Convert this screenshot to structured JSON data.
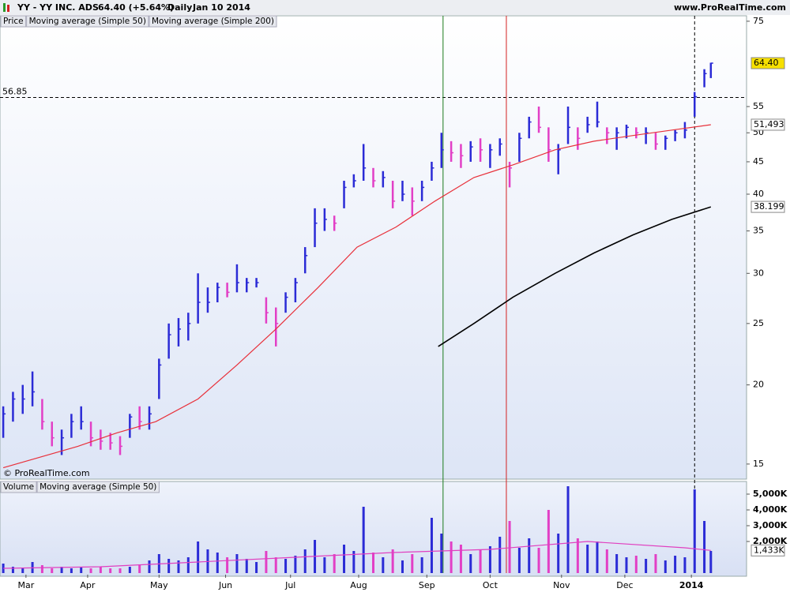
{
  "chart_data": [
    {
      "type": "ohlc",
      "title": "YY - YY INC. ADS",
      "subtitle": "64.40 (+5.64%)",
      "period": "Daily",
      "date": "Jan 10 2014",
      "source": "www.ProRealTime.com",
      "copyright": "© ProRealTime.com",
      "log_scale": true,
      "xlim": [
        -1,
        229
      ],
      "ylim": [
        14.2,
        76.5
      ],
      "yticks": [
        15,
        20,
        25,
        30,
        35,
        40,
        45,
        50,
        55,
        75
      ],
      "x": [
        0,
        3,
        6,
        9,
        12,
        15,
        18,
        21,
        24,
        27,
        30,
        33,
        36,
        39,
        42,
        45,
        48,
        51,
        54,
        57,
        60,
        63,
        66,
        69,
        72,
        75,
        78,
        81,
        84,
        87,
        90,
        93,
        96,
        99,
        102,
        105,
        108,
        111,
        114,
        117,
        120,
        123,
        126,
        129,
        132,
        135,
        138,
        141,
        144,
        147,
        150,
        153,
        156,
        159,
        162,
        165,
        168,
        171,
        174,
        177,
        180,
        183,
        186,
        189,
        192,
        195,
        198,
        201,
        204,
        207,
        210,
        213,
        216,
        218
      ],
      "series": [
        {
          "name": "Price",
          "up_color": "#2b2bd6",
          "down_color": "#e23fc6",
          "low": [
            16.5,
            17.5,
            18,
            18.5,
            17,
            16,
            15.5,
            16.5,
            17,
            16,
            15.8,
            15.8,
            15.5,
            16.5,
            17,
            17,
            19,
            22,
            23,
            23.5,
            25,
            26,
            27,
            27.5,
            28,
            28,
            28.5,
            25,
            23,
            26,
            27,
            30,
            33,
            35,
            35,
            38,
            41,
            42,
            41,
            41,
            38,
            39,
            37,
            39,
            42,
            44,
            45,
            44,
            45,
            45,
            44,
            46,
            41,
            45,
            49,
            50,
            45,
            43,
            48,
            47,
            50,
            51,
            48,
            47,
            49,
            49,
            48,
            47,
            47,
            48.5,
            49,
            53,
            59,
            61
          ],
          "high": [
            18.5,
            19.5,
            20,
            21,
            19,
            17.5,
            17,
            18,
            18.5,
            17.5,
            17,
            16.8,
            16.6,
            18,
            18.5,
            18.5,
            22,
            25,
            25.5,
            26,
            30,
            28.5,
            29,
            29,
            31,
            29.5,
            29.5,
            27.5,
            26.5,
            28,
            29.5,
            33,
            38,
            38,
            37,
            42,
            43,
            48,
            44,
            43.5,
            42,
            42,
            41,
            42,
            45,
            50,
            48.5,
            48,
            48.5,
            49,
            48,
            49,
            45,
            50,
            53,
            55,
            51,
            48,
            55,
            51,
            53,
            56,
            51,
            51,
            51.5,
            51,
            51,
            50,
            49.5,
            50.5,
            52,
            58,
            63,
            64.5
          ],
          "close": [
            18,
            19,
            19,
            19.5,
            17.5,
            16.5,
            16.5,
            17.5,
            17.5,
            16.5,
            16.3,
            16.2,
            16,
            17.8,
            17.5,
            18,
            21.5,
            24,
            24.5,
            25,
            27,
            27,
            28.5,
            28,
            29,
            29,
            29,
            26,
            25,
            27.5,
            29,
            32,
            36,
            36.5,
            36,
            41,
            42,
            44,
            42,
            42.5,
            39,
            40,
            39,
            41,
            44,
            47,
            46.5,
            46,
            47.5,
            47,
            47,
            48,
            44,
            49,
            52,
            51,
            47,
            47,
            51,
            49,
            51.5,
            52,
            50,
            50,
            51,
            50,
            50,
            48,
            49,
            50,
            50.5,
            57,
            62,
            64.4
          ],
          "last_label": {
            "value": 64.4,
            "label": "64.40"
          },
          "label_color": "#f7e000"
        },
        {
          "name": "Moving average (Simple 50)",
          "color": "#e8303a",
          "x": [
            0,
            23,
            35,
            47,
            60,
            72,
            84,
            97,
            109,
            121,
            133,
            145,
            157,
            170,
            182,
            194,
            206,
            218
          ],
          "values": [
            14.8,
            16,
            16.8,
            17.5,
            19,
            21.5,
            24.5,
            28.5,
            33,
            35.5,
            39,
            42.5,
            44.5,
            47,
            48.5,
            49.5,
            50.5,
            51.493
          ],
          "last_label": {
            "value": 51.493,
            "label": "51,493"
          }
        },
        {
          "name": "Moving average (Simple 200)",
          "color": "#000000",
          "x": [
            134,
            145,
            157,
            170,
            182,
            194,
            206,
            218
          ],
          "values": [
            23,
            25,
            27.5,
            30,
            32.3,
            34.5,
            36.5,
            38.199
          ],
          "last_label": {
            "value": 38.199,
            "label": "38.199"
          }
        }
      ],
      "hline": {
        "value": 56.85,
        "label": "56.85"
      },
      "vlines": [
        {
          "x": 135.5,
          "color": "#1a7a1a",
          "style": "solid"
        },
        {
          "x": 155,
          "color": "#d42020",
          "style": "solid"
        },
        {
          "x": 213,
          "color": "#000000",
          "style": "dashed"
        }
      ]
    },
    {
      "type": "bar",
      "xlim": [
        -1,
        229
      ],
      "ylim": [
        0,
        5800
      ],
      "yticks": [
        {
          "value": 2000,
          "label": "2,000K"
        },
        {
          "value": 3000,
          "label": "3,000K"
        },
        {
          "value": 4000,
          "label": "4,000K"
        },
        {
          "value": 5000,
          "label": "5,000K"
        }
      ],
      "xticks": [
        {
          "value": 7,
          "label": "Mar"
        },
        {
          "value": 26,
          "label": "Apr"
        },
        {
          "value": 48,
          "label": "May"
        },
        {
          "value": 68.5,
          "label": "Jun"
        },
        {
          "value": 88.5,
          "label": "Jul"
        },
        {
          "value": 109.5,
          "label": "Aug"
        },
        {
          "value": 130.5,
          "label": "Sep"
        },
        {
          "value": 150,
          "label": "Oct"
        },
        {
          "value": 172,
          "label": "Nov"
        },
        {
          "value": 191.5,
          "label": "Dec"
        },
        {
          "value": 212,
          "label": "2014"
        }
      ],
      "series": [
        {
          "name": "Volume",
          "color": "#2b2bd6",
          "values": [
            600,
            400,
            300,
            700,
            500,
            300,
            400,
            300,
            400,
            300,
            400,
            300,
            300,
            400,
            500,
            800,
            1200,
            900,
            800,
            1000,
            2000,
            1500,
            1300,
            1000,
            1200,
            900,
            700,
            1400,
            1000,
            900,
            1100,
            1500,
            2100,
            1000,
            1200,
            1800,
            1400,
            4200,
            1300,
            1000,
            1500,
            800,
            1200,
            1000,
            3500,
            2500,
            2000,
            1800,
            1200,
            1500,
            1700,
            2300,
            3300,
            1600,
            2200,
            1600,
            4000,
            2500,
            5500,
            2200,
            1800,
            2000,
            1500,
            1200,
            1000,
            1100,
            900,
            1200,
            800,
            1100,
            1000,
            5300,
            3300,
            1400
          ]
        },
        {
          "name": "Moving average (Simple 50)",
          "color": "#e040c0",
          "x": [
            0,
            30,
            60,
            90,
            120,
            150,
            180,
            210,
            218
          ],
          "values": [
            300,
            400,
            700,
            1000,
            1300,
            1500,
            2000,
            1600,
            1433
          ],
          "last_label": {
            "value": 1433,
            "label": "1,433K"
          }
        }
      ]
    }
  ]
}
